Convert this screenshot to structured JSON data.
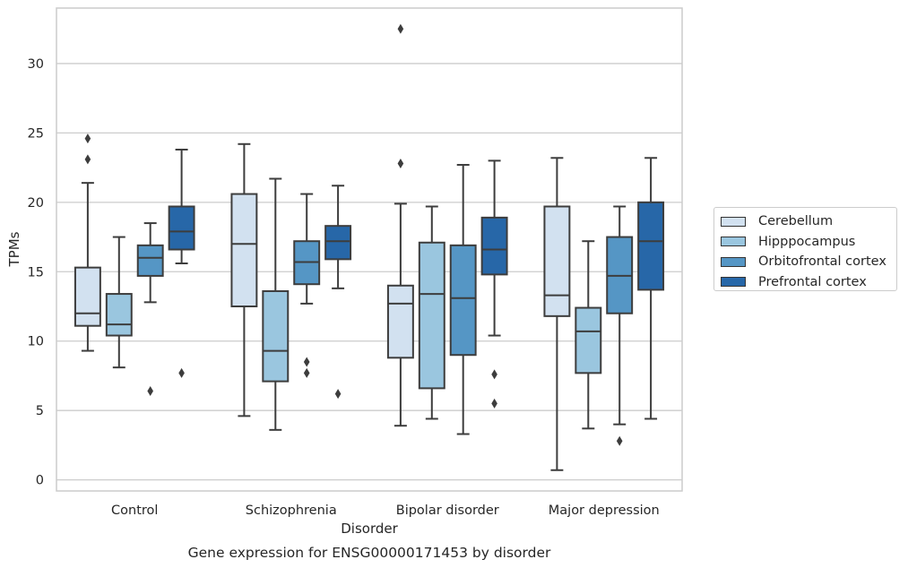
{
  "chart_data": {
    "type": "box",
    "caption": "Gene expression for ENSG00000171453 by disorder",
    "xlabel": "Disorder",
    "ylabel": "TPMs",
    "ylim": [
      -0.8,
      34
    ],
    "yticks": [
      0,
      5,
      10,
      15,
      20,
      25,
      30
    ],
    "grid": true,
    "legend_position": "right-center",
    "categories": [
      "Control",
      "Schizophrenia",
      "Bipolar disorder",
      "Major depression"
    ],
    "series": [
      {
        "name": "Cerebellum",
        "color": "#d2e1f0",
        "boxes": [
          {
            "min": 9.3,
            "q1": 11.1,
            "median": 12.0,
            "q3": 15.3,
            "max": 21.4,
            "outliers": [
              23.1,
              24.6
            ]
          },
          {
            "min": 4.6,
            "q1": 12.5,
            "median": 17.0,
            "q3": 20.6,
            "max": 24.2,
            "outliers": []
          },
          {
            "min": 3.9,
            "q1": 8.8,
            "median": 12.7,
            "q3": 14.0,
            "max": 19.9,
            "outliers": [
              22.8,
              32.5
            ]
          },
          {
            "min": 0.7,
            "q1": 11.8,
            "median": 13.3,
            "q3": 19.7,
            "max": 23.2,
            "outliers": []
          }
        ]
      },
      {
        "name": "Hipppocampus",
        "color": "#9ac6df",
        "boxes": [
          {
            "min": 8.1,
            "q1": 10.4,
            "median": 11.2,
            "q3": 13.4,
            "max": 17.5,
            "outliers": []
          },
          {
            "min": 3.6,
            "q1": 7.1,
            "median": 9.3,
            "q3": 13.6,
            "max": 21.7,
            "outliers": []
          },
          {
            "min": 4.4,
            "q1": 6.6,
            "median": 13.4,
            "q3": 17.1,
            "max": 19.7,
            "outliers": []
          },
          {
            "min": 3.7,
            "q1": 7.7,
            "median": 10.7,
            "q3": 12.4,
            "max": 17.2,
            "outliers": []
          }
        ]
      },
      {
        "name": "Orbitofrontal cortex",
        "color": "#5596c5",
        "boxes": [
          {
            "min": 12.8,
            "q1": 14.7,
            "median": 16.0,
            "q3": 16.9,
            "max": 18.5,
            "outliers": [
              6.4
            ]
          },
          {
            "min": 12.7,
            "q1": 14.1,
            "median": 15.7,
            "q3": 17.2,
            "max": 20.6,
            "outliers": [
              7.7,
              8.5
            ]
          },
          {
            "min": 3.3,
            "q1": 9.0,
            "median": 13.1,
            "q3": 16.9,
            "max": 22.7,
            "outliers": []
          },
          {
            "min": 4.0,
            "q1": 12.0,
            "median": 14.7,
            "q3": 17.5,
            "max": 19.7,
            "outliers": [
              2.8
            ]
          }
        ]
      },
      {
        "name": "Prefrontal cortex",
        "color": "#2767a8",
        "boxes": [
          {
            "min": 15.6,
            "q1": 16.6,
            "median": 17.9,
            "q3": 19.7,
            "max": 23.8,
            "outliers": [
              7.7
            ]
          },
          {
            "min": 13.8,
            "q1": 15.9,
            "median": 17.2,
            "q3": 18.3,
            "max": 21.2,
            "outliers": [
              6.2
            ]
          },
          {
            "min": 10.4,
            "q1": 14.8,
            "median": 16.6,
            "q3": 18.9,
            "max": 23.0,
            "outliers": [
              5.5,
              7.6
            ]
          },
          {
            "min": 4.4,
            "q1": 13.7,
            "median": 17.2,
            "q3": 20.0,
            "max": 23.2,
            "outliers": []
          }
        ]
      }
    ]
  }
}
